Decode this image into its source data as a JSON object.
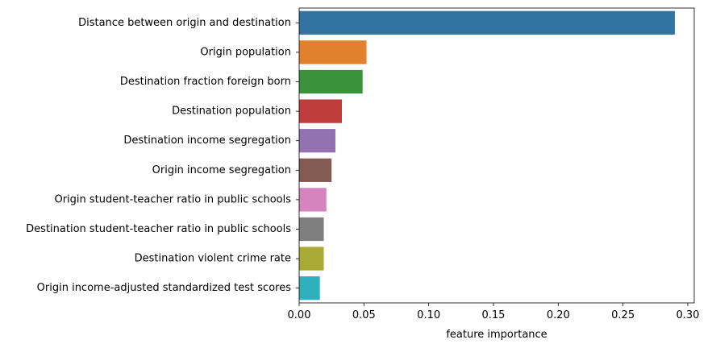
{
  "chart_data": {
    "type": "bar",
    "orientation": "horizontal",
    "title": "",
    "xlabel": "feature importance",
    "ylabel": "",
    "xlim": [
      0,
      0.305
    ],
    "xticks": [
      0.0,
      0.05,
      0.1,
      0.15,
      0.2,
      0.25,
      0.3
    ],
    "xtick_labels": [
      "0.00",
      "0.05",
      "0.10",
      "0.15",
      "0.20",
      "0.25",
      "0.30"
    ],
    "grid": false,
    "categories": [
      "Distance between origin and destination",
      "Origin population",
      "Destination fraction foreign born",
      "Destination population",
      "Destination income segregation",
      "Origin income segregation",
      "Origin student-teacher ratio in public schools",
      "Destination student-teacher ratio in public schools",
      "Destination violent crime rate",
      "Origin income-adjusted standardized test scores"
    ],
    "values": [
      0.29,
      0.052,
      0.049,
      0.033,
      0.028,
      0.025,
      0.021,
      0.019,
      0.019,
      0.016
    ],
    "colors": [
      "#3274a1",
      "#e1812c",
      "#3a923a",
      "#c03d3e",
      "#9372b2",
      "#845b53",
      "#d684bd",
      "#7f7f7f",
      "#a9aa35",
      "#2eb0be"
    ]
  }
}
